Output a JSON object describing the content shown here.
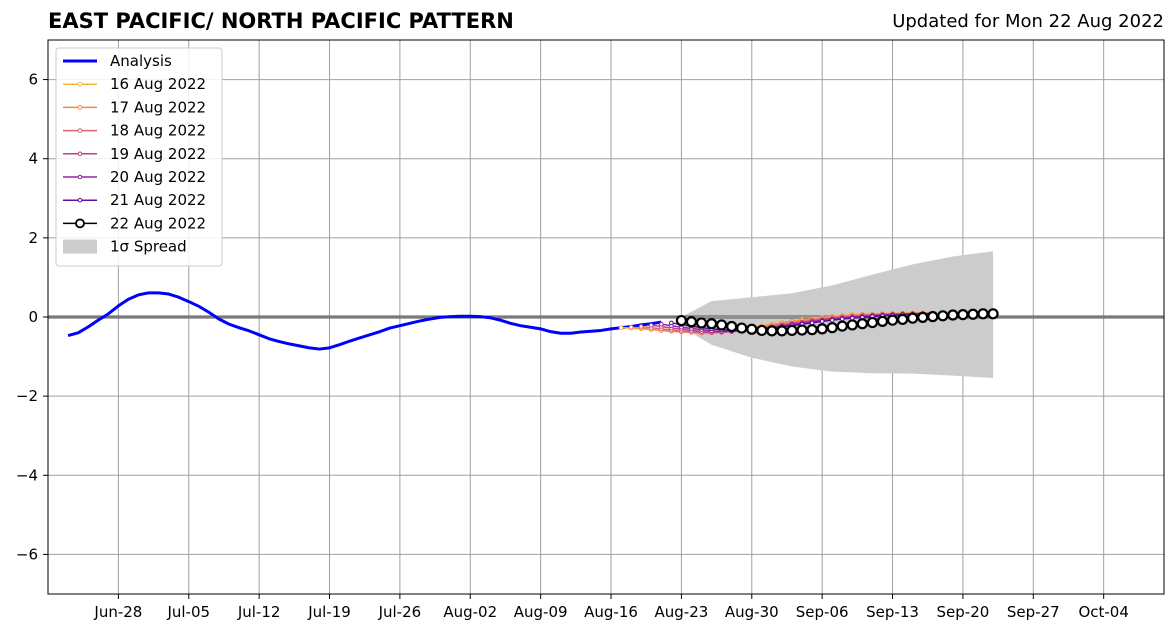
{
  "header": {
    "title": "EAST PACIFIC/ NORTH PACIFIC PATTERN",
    "updated": "Updated for Mon 22 Aug 2022"
  },
  "chart_data": {
    "type": "line",
    "ylim": [
      -7,
      7
    ],
    "xlim": [
      "2022-06-21",
      "2022-10-10"
    ],
    "grid": true,
    "legend_position": "top-left",
    "y_ticks": [
      -6,
      -4,
      -2,
      0,
      2,
      4,
      6
    ],
    "y_tick_labels": [
      "−6",
      "−4",
      "−2",
      "0",
      "2",
      "4",
      "6"
    ],
    "x_ticks": [
      "2022-06-28",
      "2022-07-05",
      "2022-07-12",
      "2022-07-19",
      "2022-07-26",
      "2022-08-02",
      "2022-08-09",
      "2022-08-16",
      "2022-08-23",
      "2022-08-30",
      "2022-09-06",
      "2022-09-13",
      "2022-09-20",
      "2022-09-27",
      "2022-10-04"
    ],
    "x_tick_labels": [
      "Jun-28",
      "Jul-05",
      "Jul-12",
      "Jul-19",
      "Jul-26",
      "Aug-02",
      "Aug-09",
      "Aug-16",
      "Aug-23",
      "Aug-30",
      "Sep-06",
      "Sep-13",
      "Sep-20",
      "Sep-27",
      "Oct-04"
    ],
    "legend": [
      {
        "label": "Analysis",
        "color": "#0000ff",
        "style": "thick-line"
      },
      {
        "label": "16 Aug 2022",
        "color": "#fbb33c",
        "style": "line-dot"
      },
      {
        "label": "17 Aug 2022",
        "color": "#f48a4c",
        "style": "line-dot"
      },
      {
        "label": "18 Aug 2022",
        "color": "#e0636c",
        "style": "line-dot"
      },
      {
        "label": "19 Aug 2022",
        "color": "#c23d88",
        "style": "line-dot"
      },
      {
        "label": "20 Aug 2022",
        "color": "#9824a0",
        "style": "line-dot"
      },
      {
        "label": "21 Aug 2022",
        "color": "#5a0d9c",
        "style": "line-dot"
      },
      {
        "label": "22 Aug 2022",
        "color": "#000000",
        "style": "line-open-circle"
      },
      {
        "label": "1σ Spread",
        "color": "#cccccc",
        "style": "patch"
      }
    ],
    "analysis": {
      "name": "Analysis",
      "color": "#0000ff",
      "points": [
        [
          "2022-06-23",
          -0.47
        ],
        [
          "2022-06-24",
          -0.4
        ],
        [
          "2022-06-25",
          -0.25
        ],
        [
          "2022-06-26",
          -0.08
        ],
        [
          "2022-06-27",
          0.08
        ],
        [
          "2022-06-28",
          0.28
        ],
        [
          "2022-06-29",
          0.45
        ],
        [
          "2022-06-30",
          0.56
        ],
        [
          "2022-07-01",
          0.61
        ],
        [
          "2022-07-02",
          0.61
        ],
        [
          "2022-07-03",
          0.58
        ],
        [
          "2022-07-04",
          0.5
        ],
        [
          "2022-07-05",
          0.39
        ],
        [
          "2022-07-06",
          0.27
        ],
        [
          "2022-07-07",
          0.12
        ],
        [
          "2022-07-08",
          -0.05
        ],
        [
          "2022-07-09",
          -0.18
        ],
        [
          "2022-07-10",
          -0.27
        ],
        [
          "2022-07-11",
          -0.35
        ],
        [
          "2022-07-12",
          -0.45
        ],
        [
          "2022-07-13",
          -0.55
        ],
        [
          "2022-07-14",
          -0.62
        ],
        [
          "2022-07-15",
          -0.68
        ],
        [
          "2022-07-16",
          -0.73
        ],
        [
          "2022-07-17",
          -0.78
        ],
        [
          "2022-07-18",
          -0.81
        ],
        [
          "2022-07-19",
          -0.78
        ],
        [
          "2022-07-20",
          -0.7
        ],
        [
          "2022-07-21",
          -0.61
        ],
        [
          "2022-07-22",
          -0.53
        ],
        [
          "2022-07-23",
          -0.45
        ],
        [
          "2022-07-24",
          -0.37
        ],
        [
          "2022-07-25",
          -0.28
        ],
        [
          "2022-07-26",
          -0.22
        ],
        [
          "2022-07-27",
          -0.16
        ],
        [
          "2022-07-28",
          -0.1
        ],
        [
          "2022-07-29",
          -0.05
        ],
        [
          "2022-07-30",
          -0.01
        ],
        [
          "2022-07-31",
          0.01
        ],
        [
          "2022-08-01",
          0.02
        ],
        [
          "2022-08-02",
          0.02
        ],
        [
          "2022-08-03",
          0.01
        ],
        [
          "2022-08-04",
          -0.02
        ],
        [
          "2022-08-05",
          -0.08
        ],
        [
          "2022-08-06",
          -0.16
        ],
        [
          "2022-08-07",
          -0.22
        ],
        [
          "2022-08-08",
          -0.26
        ],
        [
          "2022-08-09",
          -0.3
        ],
        [
          "2022-08-10",
          -0.37
        ],
        [
          "2022-08-11",
          -0.41
        ],
        [
          "2022-08-12",
          -0.41
        ],
        [
          "2022-08-13",
          -0.38
        ],
        [
          "2022-08-14",
          -0.36
        ],
        [
          "2022-08-15",
          -0.34
        ],
        [
          "2022-08-16",
          -0.3
        ],
        [
          "2022-08-17",
          -0.27
        ],
        [
          "2022-08-18",
          -0.24
        ],
        [
          "2022-08-19",
          -0.2
        ],
        [
          "2022-08-20",
          -0.17
        ],
        [
          "2022-08-21",
          -0.13
        ]
      ]
    },
    "forecasts": [
      {
        "name": "16 Aug 2022",
        "color": "#fbb33c",
        "start": "2022-08-17",
        "values": [
          -0.27,
          -0.28,
          -0.3,
          -0.32,
          -0.34,
          -0.36,
          -0.37,
          -0.38,
          -0.38,
          -0.37,
          -0.35,
          -0.32,
          -0.29,
          -0.26,
          -0.22,
          -0.18,
          -0.14,
          -0.1,
          -0.07,
          -0.04,
          -0.01,
          0.02,
          0.04,
          0.06,
          0.07,
          0.08,
          0.09,
          0.09,
          0.1,
          0.1,
          0.1,
          0.1
        ]
      },
      {
        "name": "17 Aug 2022",
        "color": "#f48a4c",
        "start": "2022-08-18",
        "values": [
          -0.26,
          -0.28,
          -0.31,
          -0.34,
          -0.36,
          -0.38,
          -0.39,
          -0.4,
          -0.39,
          -0.37,
          -0.34,
          -0.31,
          -0.27,
          -0.23,
          -0.19,
          -0.15,
          -0.11,
          -0.08,
          -0.05,
          -0.02,
          0.01,
          0.03,
          0.05,
          0.06,
          0.07,
          0.08,
          0.09,
          0.09,
          0.1,
          0.1,
          0.1
        ]
      },
      {
        "name": "18 Aug 2022",
        "color": "#e0636c",
        "start": "2022-08-19",
        "values": [
          -0.24,
          -0.27,
          -0.3,
          -0.33,
          -0.36,
          -0.38,
          -0.4,
          -0.4,
          -0.39,
          -0.37,
          -0.34,
          -0.31,
          -0.27,
          -0.23,
          -0.19,
          -0.15,
          -0.12,
          -0.08,
          -0.05,
          -0.02,
          0.0,
          0.02,
          0.04,
          0.05,
          0.06,
          0.07,
          0.08,
          0.09,
          0.09,
          0.09
        ]
      },
      {
        "name": "19 Aug 2022",
        "color": "#c23d88",
        "start": "2022-08-20",
        "values": [
          -0.21,
          -0.24,
          -0.28,
          -0.31,
          -0.34,
          -0.37,
          -0.38,
          -0.38,
          -0.37,
          -0.35,
          -0.32,
          -0.29,
          -0.25,
          -0.21,
          -0.17,
          -0.14,
          -0.1,
          -0.07,
          -0.04,
          -0.01,
          0.01,
          0.03,
          0.04,
          0.06,
          0.07,
          0.08,
          0.08,
          0.09,
          0.09
        ]
      },
      {
        "name": "20 Aug 2022",
        "color": "#9824a0",
        "start": "2022-08-21",
        "values": [
          -0.18,
          -0.22,
          -0.26,
          -0.29,
          -0.32,
          -0.35,
          -0.36,
          -0.36,
          -0.35,
          -0.33,
          -0.3,
          -0.27,
          -0.23,
          -0.19,
          -0.16,
          -0.12,
          -0.09,
          -0.06,
          -0.03,
          -0.01,
          0.01,
          0.03,
          0.05,
          0.06,
          0.07,
          0.08,
          0.08,
          0.09
        ]
      },
      {
        "name": "21 Aug 2022",
        "color": "#5a0d9c",
        "start": "2022-08-22",
        "values": [
          -0.15,
          -0.19,
          -0.23,
          -0.27,
          -0.3,
          -0.32,
          -0.34,
          -0.34,
          -0.33,
          -0.31,
          -0.28,
          -0.25,
          -0.22,
          -0.18,
          -0.15,
          -0.11,
          -0.08,
          -0.05,
          -0.03,
          -0.01,
          0.01,
          0.03,
          0.04,
          0.06,
          0.07,
          0.07,
          0.08
        ]
      },
      {
        "name": "22 Aug 2022",
        "color": "#000000",
        "start": "2022-08-23",
        "marker": "open-circle",
        "values": [
          -0.09,
          -0.12,
          -0.15,
          -0.17,
          -0.2,
          -0.24,
          -0.28,
          -0.31,
          -0.34,
          -0.35,
          -0.35,
          -0.34,
          -0.33,
          -0.32,
          -0.3,
          -0.27,
          -0.23,
          -0.2,
          -0.17,
          -0.14,
          -0.11,
          -0.08,
          -0.06,
          -0.03,
          -0.01,
          0.01,
          0.03,
          0.05,
          0.06,
          0.07,
          0.08,
          0.08
        ]
      }
    ],
    "spread": {
      "name": "1σ Spread",
      "color": "#cccccc",
      "x": [
        "2022-08-23",
        "2022-08-26",
        "2022-08-30",
        "2022-09-03",
        "2022-09-07",
        "2022-09-11",
        "2022-09-15",
        "2022-09-19",
        "2022-09-23"
      ],
      "upper": [
        0.0,
        0.4,
        0.5,
        0.6,
        0.8,
        1.07,
        1.33,
        1.53,
        1.66
      ],
      "lower": [
        -0.25,
        -0.7,
        -1.03,
        -1.25,
        -1.38,
        -1.42,
        -1.43,
        -1.48,
        -1.54
      ]
    }
  }
}
